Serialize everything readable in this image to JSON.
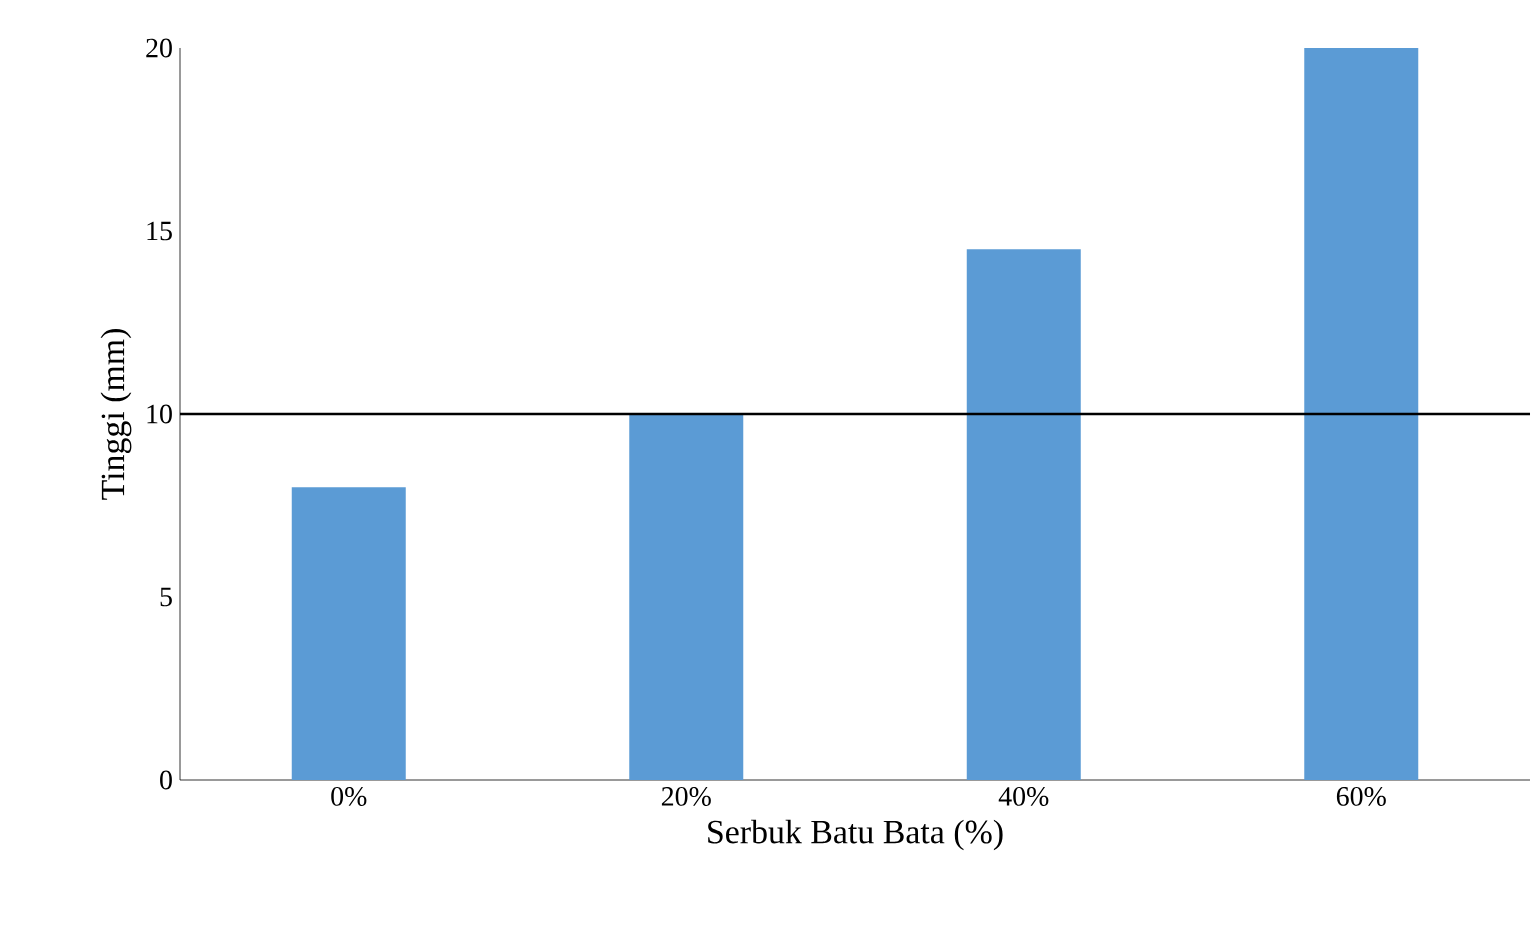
{
  "chart_data": {
    "type": "bar",
    "xlabel": "Serbuk Batu Bata (%)",
    "ylabel": "Tinggi (mm)",
    "categories": [
      "0%",
      "20%",
      "40%",
      "60%"
    ],
    "values": [
      8,
      10,
      14.5,
      20
    ],
    "color": "#5b9bd5",
    "ylim": [
      0,
      20
    ],
    "yticks": [
      0,
      5,
      10,
      15,
      20
    ],
    "grid": false,
    "ref_lines": [
      {
        "axis": "y",
        "value": 10,
        "color": "#000000"
      }
    ]
  }
}
